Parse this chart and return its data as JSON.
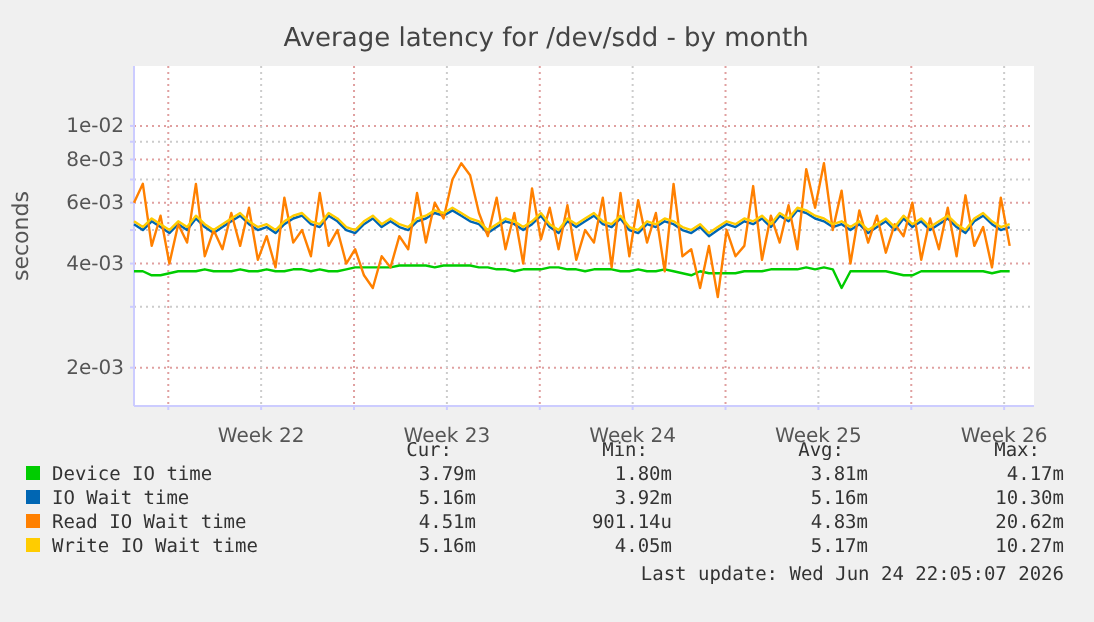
{
  "chart_data": {
    "type": "line",
    "title": "Average latency for /dev/sdd - by month",
    "ylabel": "seconds",
    "log": "y",
    "grid": true,
    "legend": "bottom",
    "xlim": [
      "2026-05-22T00:00",
      "2026-06-24T22:00"
    ],
    "xticks": [
      {
        "value": "2026-05-23T07:00",
        "label": null
      },
      {
        "value": "2026-05-26T19:00",
        "label": "Week 22"
      },
      {
        "value": "2026-05-30T07:00",
        "label": null
      },
      {
        "value": "2026-06-02T19:00",
        "label": "Week 23"
      },
      {
        "value": "2026-06-06T07:00",
        "label": null
      },
      {
        "value": "2026-06-09T19:00",
        "label": "Week 24"
      },
      {
        "value": "2026-06-13T07:00",
        "label": null
      },
      {
        "value": "2026-06-16T19:00",
        "label": "Week 25"
      },
      {
        "value": "2026-06-20T07:00",
        "label": null
      },
      {
        "value": "2026-06-23T19:00",
        "label": "Week 26"
      }
    ],
    "ylim": [
      0.00155,
      0.0149
    ],
    "yticks": [
      {
        "value": 0.002,
        "label": "2e-03"
      },
      {
        "value": 0.003,
        "label": null
      },
      {
        "value": 0.004,
        "label": "4e-03"
      },
      {
        "value": 0.005,
        "label": null
      },
      {
        "value": 0.006,
        "label": "6e-03"
      },
      {
        "value": 0.007,
        "label": null
      },
      {
        "value": 0.008,
        "label": "8e-03"
      },
      {
        "value": 0.009,
        "label": null
      },
      {
        "value": 0.01,
        "label": "1e-02"
      }
    ],
    "x": [
      "2026-05-22T00:00",
      "2026-05-22T08:00",
      "2026-05-22T16:00",
      "2026-05-23T00:00",
      "2026-05-23T08:00",
      "2026-05-23T16:00",
      "2026-05-24T00:00",
      "2026-05-24T08:00",
      "2026-05-24T16:00",
      "2026-05-25T00:00",
      "2026-05-25T08:00",
      "2026-05-25T16:00",
      "2026-05-26T00:00",
      "2026-05-26T08:00",
      "2026-05-26T16:00",
      "2026-05-27T00:00",
      "2026-05-27T08:00",
      "2026-05-27T16:00",
      "2026-05-28T00:00",
      "2026-05-28T08:00",
      "2026-05-28T16:00",
      "2026-05-29T00:00",
      "2026-05-29T08:00",
      "2026-05-29T16:00",
      "2026-05-30T00:00",
      "2026-05-30T08:00",
      "2026-05-30T16:00",
      "2026-05-31T00:00",
      "2026-05-31T08:00",
      "2026-05-31T16:00",
      "2026-06-01T00:00",
      "2026-06-01T08:00",
      "2026-06-01T16:00",
      "2026-06-02T00:00",
      "2026-06-02T08:00",
      "2026-06-02T16:00",
      "2026-06-03T00:00",
      "2026-06-03T08:00",
      "2026-06-03T16:00",
      "2026-06-04T00:00",
      "2026-06-04T08:00",
      "2026-06-04T16:00",
      "2026-06-05T00:00",
      "2026-06-05T08:00",
      "2026-06-05T16:00",
      "2026-06-06T00:00",
      "2026-06-06T08:00",
      "2026-06-06T16:00",
      "2026-06-07T00:00",
      "2026-06-07T08:00",
      "2026-06-07T16:00",
      "2026-06-08T00:00",
      "2026-06-08T08:00",
      "2026-06-08T16:00",
      "2026-06-09T00:00",
      "2026-06-09T08:00",
      "2026-06-09T16:00",
      "2026-06-10T00:00",
      "2026-06-10T08:00",
      "2026-06-10T16:00",
      "2026-06-11T00:00",
      "2026-06-11T08:00",
      "2026-06-11T16:00",
      "2026-06-12T00:00",
      "2026-06-12T08:00",
      "2026-06-12T16:00",
      "2026-06-13T00:00",
      "2026-06-13T08:00",
      "2026-06-13T16:00",
      "2026-06-14T00:00",
      "2026-06-14T08:00",
      "2026-06-14T16:00",
      "2026-06-15T00:00",
      "2026-06-15T08:00",
      "2026-06-15T16:00",
      "2026-06-16T00:00",
      "2026-06-16T08:00",
      "2026-06-16T16:00",
      "2026-06-17T00:00",
      "2026-06-17T08:00",
      "2026-06-17T16:00",
      "2026-06-18T00:00",
      "2026-06-18T08:00",
      "2026-06-18T16:00",
      "2026-06-19T00:00",
      "2026-06-19T08:00",
      "2026-06-19T16:00",
      "2026-06-20T00:00",
      "2026-06-20T08:00",
      "2026-06-20T16:00",
      "2026-06-21T00:00",
      "2026-06-21T08:00",
      "2026-06-21T16:00",
      "2026-06-22T00:00",
      "2026-06-22T08:00",
      "2026-06-22T16:00",
      "2026-06-23T00:00",
      "2026-06-23T08:00",
      "2026-06-23T16:00",
      "2026-06-24T00:00"
    ],
    "series": [
      {
        "name": "Device IO time",
        "color": "#00cc00",
        "values": [
          0.0038,
          0.0038,
          0.0037,
          0.0037,
          0.00375,
          0.0038,
          0.0038,
          0.0038,
          0.00385,
          0.0038,
          0.0038,
          0.0038,
          0.00385,
          0.0038,
          0.0038,
          0.00385,
          0.0038,
          0.0038,
          0.00385,
          0.00385,
          0.0038,
          0.00385,
          0.0038,
          0.0038,
          0.00385,
          0.0039,
          0.0039,
          0.0039,
          0.0039,
          0.0039,
          0.00395,
          0.00395,
          0.00395,
          0.00395,
          0.0039,
          0.00395,
          0.00395,
          0.00395,
          0.00395,
          0.0039,
          0.0039,
          0.00385,
          0.00385,
          0.0038,
          0.00385,
          0.00385,
          0.00385,
          0.0039,
          0.0039,
          0.00385,
          0.00385,
          0.0038,
          0.00385,
          0.00385,
          0.00385,
          0.0038,
          0.0038,
          0.00385,
          0.0038,
          0.0038,
          0.00385,
          0.0038,
          0.00375,
          0.0037,
          0.0038,
          0.00375,
          0.00375,
          0.00375,
          0.00375,
          0.0038,
          0.0038,
          0.0038,
          0.00385,
          0.00385,
          0.00385,
          0.00385,
          0.0039,
          0.00385,
          0.0039,
          0.00385,
          0.0034,
          0.0038,
          0.0038,
          0.0038,
          0.0038,
          0.0038,
          0.00375,
          0.0037,
          0.0037,
          0.0038,
          0.0038,
          0.0038,
          0.0038,
          0.0038,
          0.0038,
          0.0038,
          0.0038,
          0.00375,
          0.0038,
          0.0038
        ]
      },
      {
        "name": "IO Wait time",
        "color": "#0066b3",
        "values": [
          0.0052,
          0.005,
          0.0053,
          0.0051,
          0.0049,
          0.0052,
          0.005,
          0.0054,
          0.0051,
          0.0049,
          0.0051,
          0.0053,
          0.0055,
          0.0052,
          0.005,
          0.0051,
          0.0049,
          0.0052,
          0.0054,
          0.0055,
          0.0052,
          0.0051,
          0.0055,
          0.0053,
          0.005,
          0.0049,
          0.0052,
          0.0054,
          0.0051,
          0.0053,
          0.0051,
          0.005,
          0.0053,
          0.0054,
          0.0056,
          0.0055,
          0.0057,
          0.0055,
          0.0053,
          0.0052,
          0.0049,
          0.0051,
          0.0053,
          0.0052,
          0.005,
          0.0052,
          0.0055,
          0.0051,
          0.0049,
          0.0053,
          0.0051,
          0.0053,
          0.0055,
          0.0052,
          0.0051,
          0.0054,
          0.005,
          0.0049,
          0.0052,
          0.0051,
          0.0053,
          0.0052,
          0.005,
          0.0049,
          0.0051,
          0.0048,
          0.005,
          0.0052,
          0.0051,
          0.0053,
          0.0052,
          0.0054,
          0.0051,
          0.0055,
          0.0053,
          0.0057,
          0.0056,
          0.0054,
          0.0053,
          0.0051,
          0.0052,
          0.005,
          0.0052,
          0.0049,
          0.0051,
          0.0053,
          0.005,
          0.0054,
          0.0051,
          0.0053,
          0.005,
          0.0052,
          0.0054,
          0.0051,
          0.0049,
          0.0053,
          0.0055,
          0.0052,
          0.005,
          0.0051
        ]
      },
      {
        "name": "Read IO Wait time",
        "color": "#ff8000",
        "values": [
          0.006,
          0.0068,
          0.0045,
          0.0055,
          0.004,
          0.0052,
          0.0046,
          0.0068,
          0.0042,
          0.005,
          0.0044,
          0.0056,
          0.0045,
          0.0058,
          0.0041,
          0.0048,
          0.0039,
          0.0062,
          0.0046,
          0.005,
          0.0042,
          0.0064,
          0.0045,
          0.005,
          0.004,
          0.0044,
          0.0037,
          0.0034,
          0.0042,
          0.0039,
          0.0048,
          0.0044,
          0.0064,
          0.0046,
          0.006,
          0.0054,
          0.007,
          0.0078,
          0.0072,
          0.0056,
          0.0048,
          0.0062,
          0.0044,
          0.0056,
          0.004,
          0.0066,
          0.0047,
          0.0058,
          0.0044,
          0.0059,
          0.0041,
          0.005,
          0.0046,
          0.0062,
          0.0039,
          0.0064,
          0.0042,
          0.0061,
          0.0046,
          0.0056,
          0.0038,
          0.0068,
          0.0042,
          0.0044,
          0.0034,
          0.0045,
          0.0032,
          0.005,
          0.0042,
          0.0045,
          0.0067,
          0.0041,
          0.0055,
          0.0046,
          0.0059,
          0.0044,
          0.0075,
          0.0058,
          0.0078,
          0.005,
          0.0065,
          0.004,
          0.0057,
          0.0046,
          0.0055,
          0.0043,
          0.0052,
          0.0048,
          0.006,
          0.0041,
          0.0054,
          0.0044,
          0.0058,
          0.0042,
          0.0063,
          0.0045,
          0.0051,
          0.0039,
          0.0062,
          0.0045
        ]
      },
      {
        "name": "Write IO Wait time",
        "color": "#ffcc00",
        "values": [
          0.0053,
          0.0051,
          0.0054,
          0.0052,
          0.005,
          0.0053,
          0.0051,
          0.0055,
          0.0052,
          0.005,
          0.0052,
          0.0054,
          0.0056,
          0.0053,
          0.0051,
          0.0052,
          0.005,
          0.0053,
          0.0055,
          0.0056,
          0.0053,
          0.0052,
          0.0056,
          0.0054,
          0.0051,
          0.005,
          0.0053,
          0.0055,
          0.0052,
          0.0054,
          0.0052,
          0.0051,
          0.0054,
          0.0055,
          0.0057,
          0.0056,
          0.0058,
          0.0056,
          0.0054,
          0.0053,
          0.005,
          0.0052,
          0.0054,
          0.0053,
          0.0051,
          0.0053,
          0.0056,
          0.0052,
          0.005,
          0.0054,
          0.0052,
          0.0054,
          0.0056,
          0.0053,
          0.0052,
          0.0055,
          0.0051,
          0.005,
          0.0053,
          0.0052,
          0.0054,
          0.0053,
          0.0051,
          0.005,
          0.0052,
          0.0049,
          0.0051,
          0.0053,
          0.0052,
          0.0054,
          0.0053,
          0.0055,
          0.0052,
          0.0056,
          0.0054,
          0.0058,
          0.0057,
          0.0055,
          0.0054,
          0.0052,
          0.0053,
          0.0051,
          0.0053,
          0.005,
          0.0052,
          0.0054,
          0.0051,
          0.0055,
          0.0052,
          0.0054,
          0.0051,
          0.0053,
          0.0055,
          0.0052,
          0.005,
          0.0054,
          0.0056,
          0.0053,
          0.0051,
          0.0052
        ]
      }
    ],
    "annotations": [
      "Cur:",
      "Min:",
      "Avg:",
      "Max:",
      "3.79m",
      "1.80m",
      "3.81m",
      "4.17m",
      "5.16m",
      "3.92m",
      "5.16m",
      "10.30m",
      "4.51m",
      "901.14u",
      "4.83m",
      "20.62m",
      "5.16m",
      "4.05m",
      "5.17m",
      "10.27m",
      "Last update: Wed Jun 24 22:05:07 2026"
    ]
  }
}
